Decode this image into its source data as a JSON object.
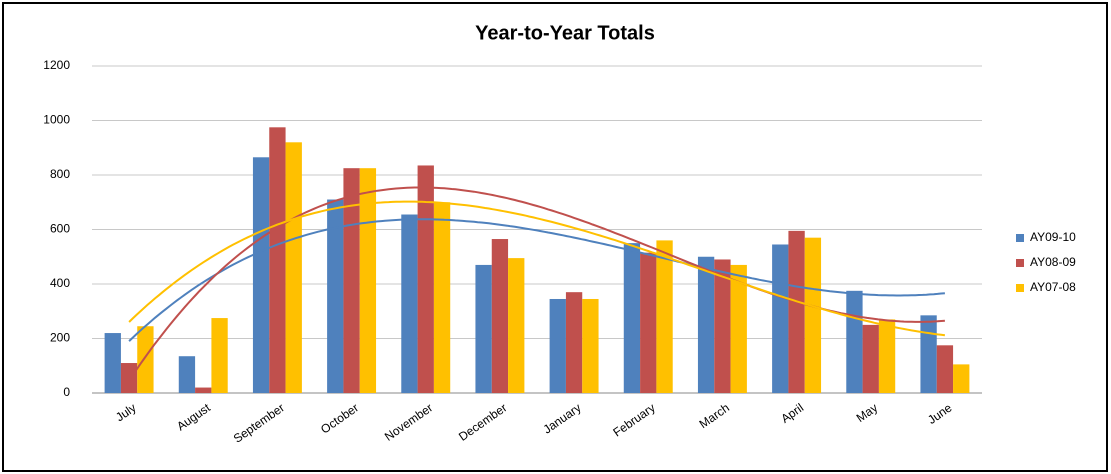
{
  "chart_data": {
    "type": "bar",
    "title": "Year-to-Year Totals",
    "categories": [
      "July",
      "August",
      "September",
      "October",
      "November",
      "December",
      "January",
      "February",
      "March",
      "April",
      "May",
      "June"
    ],
    "series": [
      {
        "name": "AY09-10",
        "color": "#4f81bd",
        "values": [
          220,
          135,
          865,
          710,
          655,
          470,
          345,
          550,
          500,
          545,
          375,
          285
        ]
      },
      {
        "name": "AY08-09",
        "color": "#c0504d",
        "values": [
          110,
          20,
          975,
          825,
          835,
          565,
          370,
          515,
          490,
          595,
          250,
          175
        ]
      },
      {
        "name": "AY07-08",
        "color": "#ffc000",
        "values": [
          245,
          275,
          920,
          825,
          700,
          495,
          345,
          560,
          470,
          570,
          270,
          105
        ]
      }
    ],
    "ylim": [
      0,
      1200
    ],
    "yticks": [
      0,
      200,
      400,
      600,
      800,
      1000,
      1200
    ],
    "grid": true,
    "legend": "right",
    "trendline": "polynomial"
  }
}
